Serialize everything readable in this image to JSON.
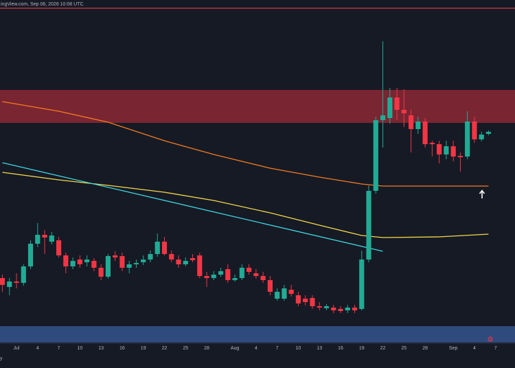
{
  "chart_data": {
    "type": "candlestick",
    "header": "ingView.com, Sep 06, 2026 10:08 UTC",
    "corner_label": "y",
    "categories": [
      null,
      null,
      "Jul",
      null,
      null,
      "4",
      null,
      null,
      "7",
      null,
      null,
      "10",
      null,
      null,
      "13",
      null,
      null,
      "16",
      null,
      null,
      "19",
      null,
      null,
      "22",
      null,
      null,
      "25",
      null,
      null,
      "28",
      null,
      null,
      null,
      "Aug",
      null,
      null,
      "4",
      null,
      null,
      "7",
      null,
      null,
      "10",
      null,
      null,
      "13",
      null,
      null,
      "16",
      null,
      null,
      "19",
      null,
      null,
      "22",
      null,
      null,
      "25",
      null,
      null,
      "28",
      null,
      null,
      null,
      "Sep",
      null,
      null,
      "4",
      null,
      null,
      "7"
    ],
    "open": [
      95,
      82,
      90,
      88,
      112,
      145,
      158,
      148,
      150,
      128,
      112,
      122,
      118,
      120,
      110,
      97,
      128,
      127,
      110,
      115,
      118,
      122,
      130,
      148,
      130,
      122,
      115,
      124,
      128,
      98,
      95,
      100,
      108,
      92,
      95,
      110,
      102,
      98,
      92,
      65,
      65,
      78,
      70,
      65,
      66,
      54,
      51,
      52,
      50,
      48,
      52,
      50,
      122,
      222,
      325,
      328,
      358,
      340,
      332,
      312,
      323,
      292,
      290,
      275,
      287,
      273,
      272,
      323,
      297,
      305,
      null
    ],
    "high": [
      100,
      95,
      102,
      115,
      150,
      175,
      165,
      162,
      155,
      132,
      125,
      128,
      128,
      124,
      115,
      130,
      134,
      132,
      120,
      122,
      128,
      135,
      160,
      155,
      135,
      128,
      125,
      130,
      132,
      104,
      105,
      110,
      115,
      100,
      115,
      115,
      108,
      104,
      98,
      80,
      85,
      85,
      75,
      70,
      70,
      60,
      57,
      56,
      54,
      56,
      56,
      135,
      230,
      330,
      440,
      372,
      372,
      370,
      340,
      330,
      328,
      295,
      295,
      295,
      295,
      278,
      338,
      330,
      308,
      310,
      null
    ],
    "low": [
      75,
      70,
      80,
      84,
      108,
      140,
      130,
      144,
      125,
      102,
      108,
      110,
      112,
      105,
      92,
      94,
      120,
      105,
      102,
      110,
      114,
      118,
      126,
      128,
      118,
      110,
      112,
      118,
      95,
      82,
      92,
      97,
      88,
      90,
      92,
      100,
      94,
      88,
      70,
      62,
      62,
      68,
      54,
      55,
      50,
      48,
      48,
      44,
      44,
      44,
      44,
      48,
      118,
      218,
      285,
      320,
      325,
      315,
      278,
      305,
      285,
      272,
      262,
      268,
      265,
      250,
      268,
      292,
      294,
      303,
      null
    ],
    "close": [
      85,
      90,
      88,
      112,
      145,
      158,
      154,
      157,
      128,
      112,
      120,
      115,
      122,
      110,
      97,
      127,
      125,
      110,
      115,
      117,
      122,
      130,
      148,
      130,
      122,
      115,
      120,
      121,
      98,
      95,
      100,
      105,
      92,
      95,
      110,
      104,
      98,
      92,
      75,
      75,
      80,
      72,
      58,
      60,
      54,
      52,
      54,
      48,
      47,
      52,
      48,
      122,
      222,
      325,
      332,
      358,
      340,
      335,
      312,
      323,
      290,
      290,
      275,
      287,
      272,
      271,
      323,
      297,
      304,
      308,
      null
    ],
    "up_color": "#22ab94",
    "down_color": "#f23645",
    "ylim": [
      0,
      500
    ],
    "zones": [
      {
        "range": [
          321,
          369
        ],
        "color": "#7a2532"
      },
      {
        "range": [
          1,
          25
        ],
        "color": "#2f4a7d"
      }
    ],
    "levels": [
      {
        "value": 488,
        "color": "#b2383f"
      }
    ],
    "overlays": [
      {
        "color": "#f57c1f",
        "x": [
          0,
          8,
          15,
          23,
          30,
          38,
          45,
          51,
          54,
          69
        ],
        "values": [
          352,
          338,
          322,
          295,
          275,
          255,
          242,
          232,
          229,
          229
        ]
      },
      {
        "color": "#f5d94a",
        "x": [
          0,
          8,
          15,
          23,
          30,
          38,
          45,
          51,
          54,
          62,
          69
        ],
        "values": [
          249,
          238,
          230,
          220,
          208,
          190,
          172,
          157,
          154,
          155,
          159
        ]
      },
      {
        "color": "#3fd8e0",
        "x": [
          0,
          54
        ],
        "values": [
          263,
          134
        ]
      }
    ]
  }
}
